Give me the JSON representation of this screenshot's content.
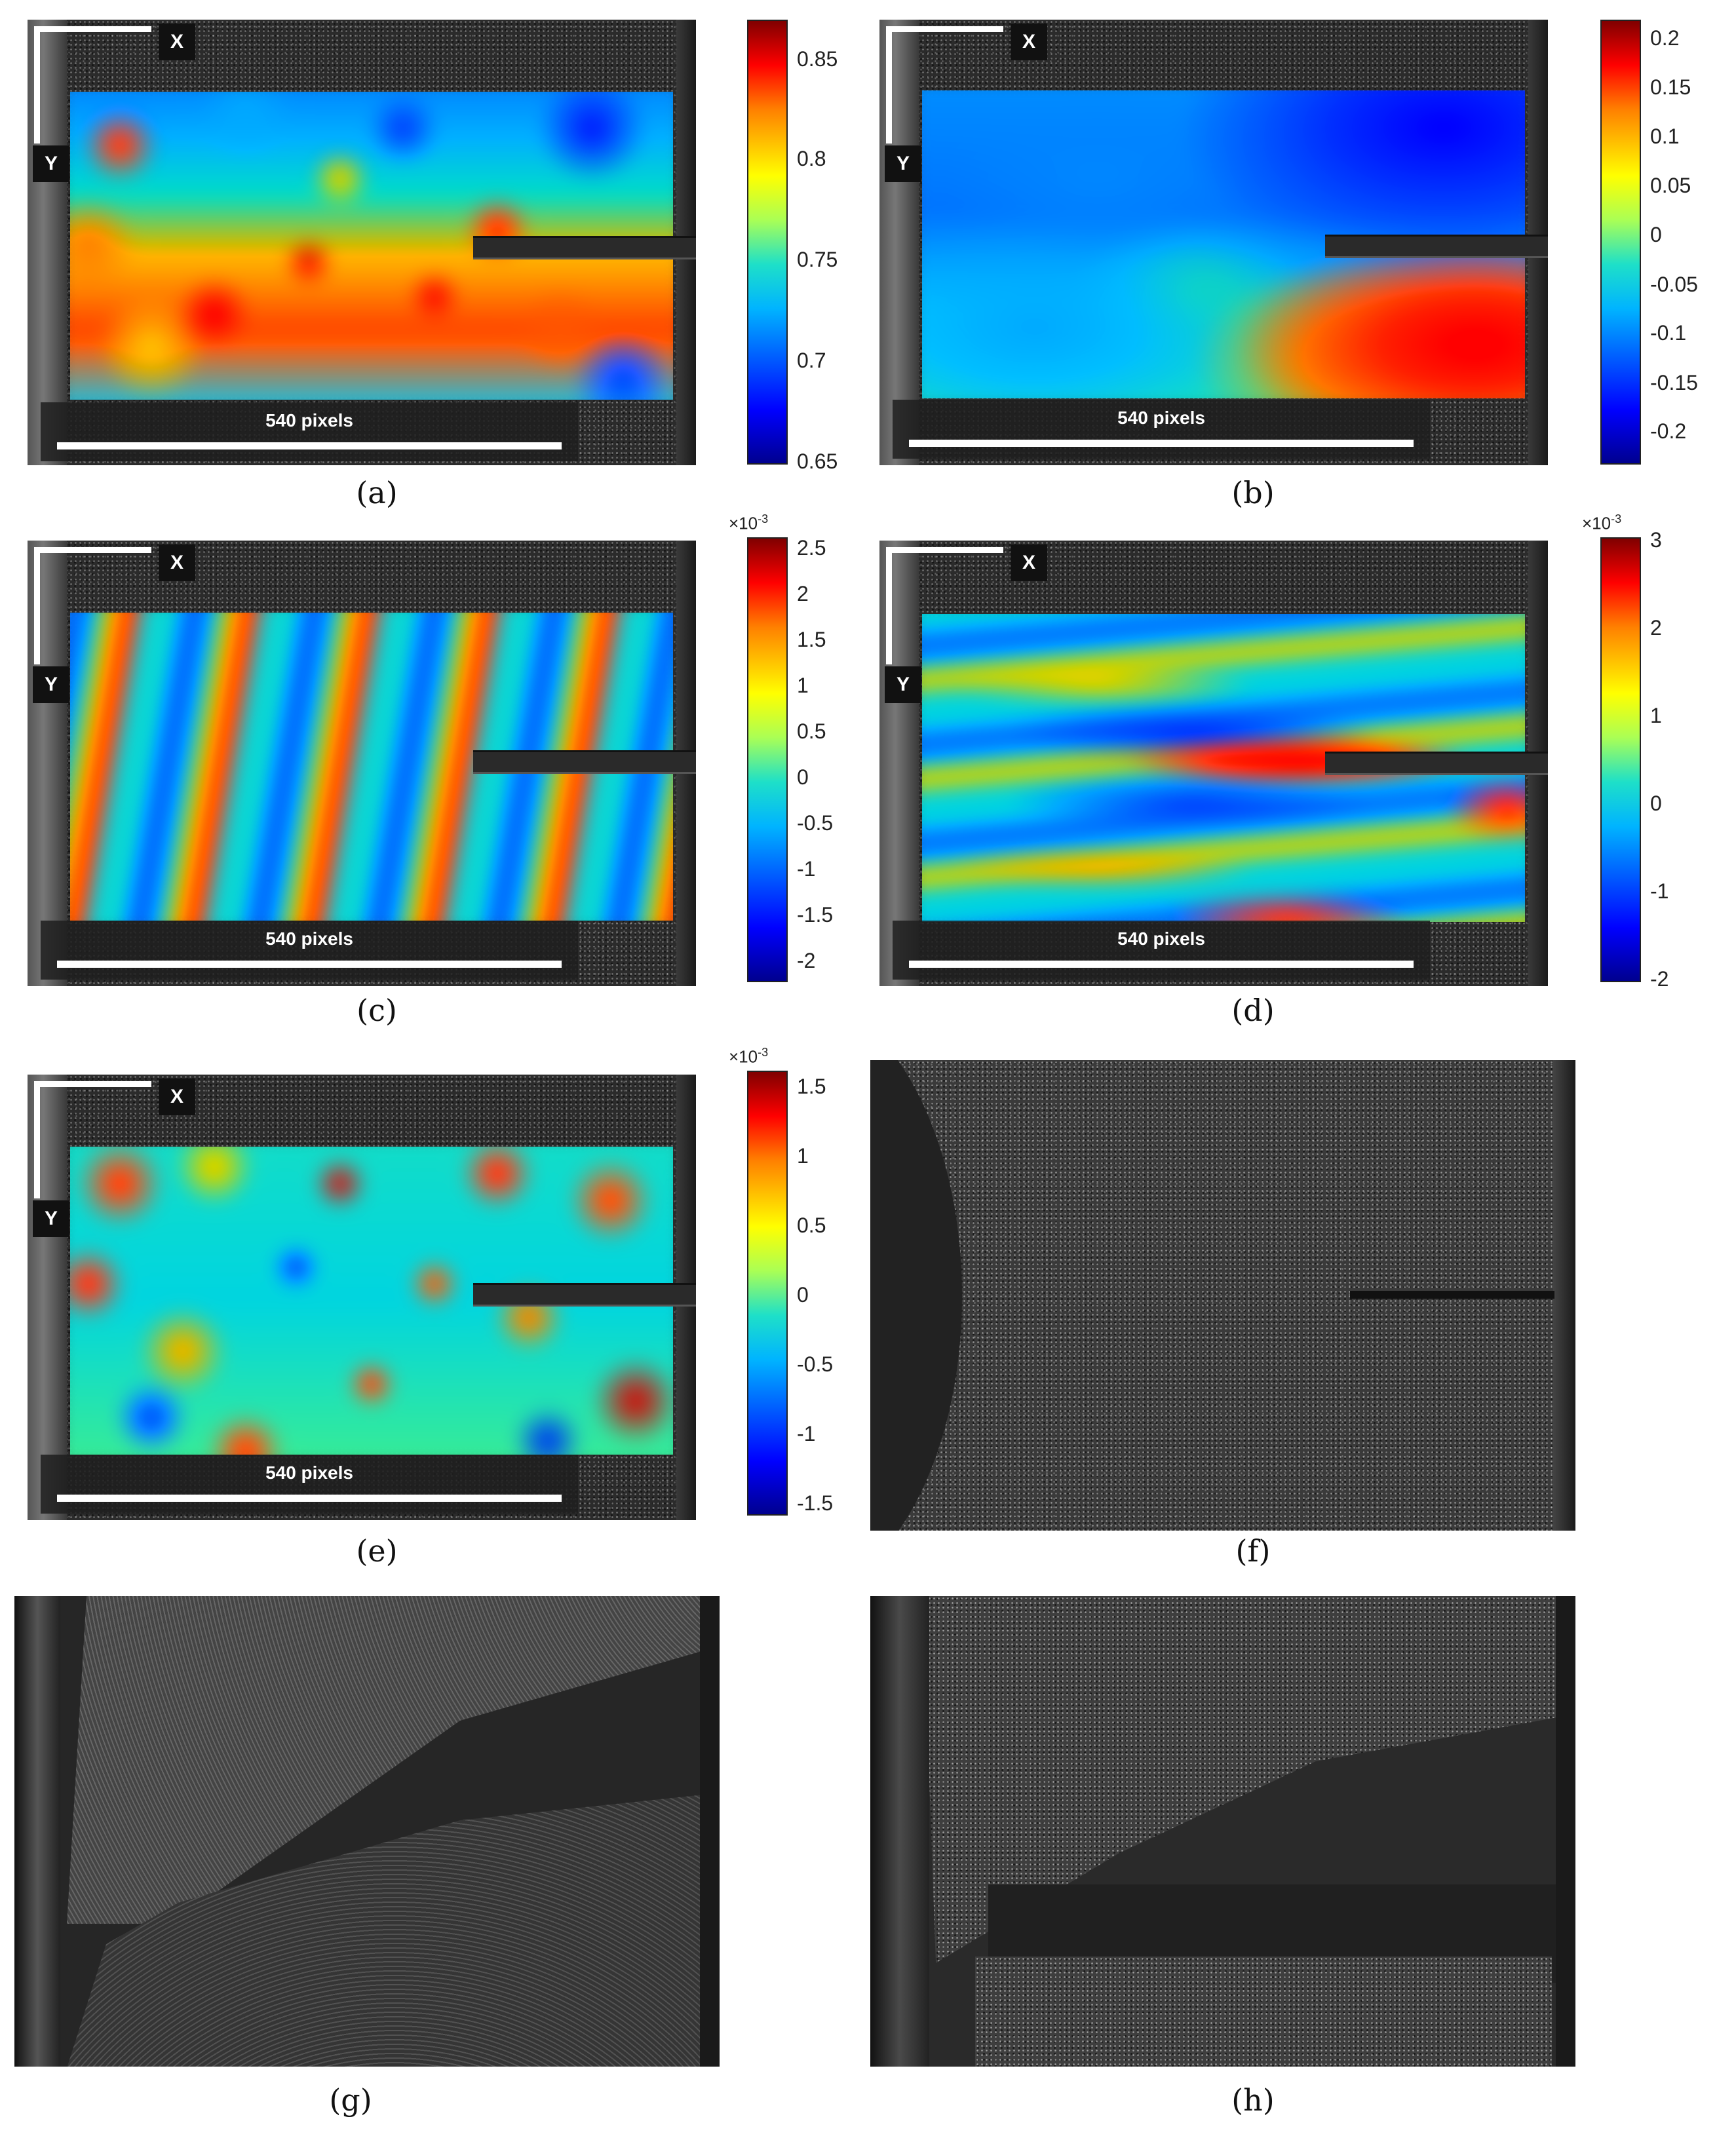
{
  "scale_bar_label": "540 pixels",
  "axis_x_label": "X",
  "axis_y_label": "Y",
  "panels": {
    "a": {
      "caption": "(a)",
      "ticks": [
        "0.85",
        "0.8",
        "0.75",
        "0.7",
        "0.65"
      ],
      "multiplier": ""
    },
    "b": {
      "caption": "(b)",
      "ticks": [
        "0.2",
        "0.15",
        "0.1",
        "0.05",
        "0",
        "-0.05",
        "-0.1",
        "-0.15",
        "-0.2"
      ],
      "multiplier": ""
    },
    "c": {
      "caption": "(c)",
      "ticks": [
        "2.5",
        "2",
        "1.5",
        "1",
        "0.5",
        "0",
        "-0.5",
        "-1",
        "-1.5",
        "-2"
      ],
      "multiplier_base": "×10",
      "multiplier_exp": "-3"
    },
    "d": {
      "caption": "(d)",
      "ticks": [
        "3",
        "2",
        "1",
        "0",
        "-1",
        "-2"
      ],
      "multiplier_base": "×10",
      "multiplier_exp": "-3"
    },
    "e": {
      "caption": "(e)",
      "ticks": [
        "1.5",
        "1",
        "0.5",
        "0",
        "-0.5",
        "-1",
        "-1.5"
      ],
      "multiplier_base": "×10",
      "multiplier_exp": "-3"
    },
    "f": {
      "caption": "(f)"
    },
    "g": {
      "caption": "(g)"
    },
    "h": {
      "caption": "(h)"
    }
  },
  "colors": {
    "jet_min": "#00008f",
    "jet_mid": "#1ee0c8",
    "jet_max": "#800000"
  }
}
